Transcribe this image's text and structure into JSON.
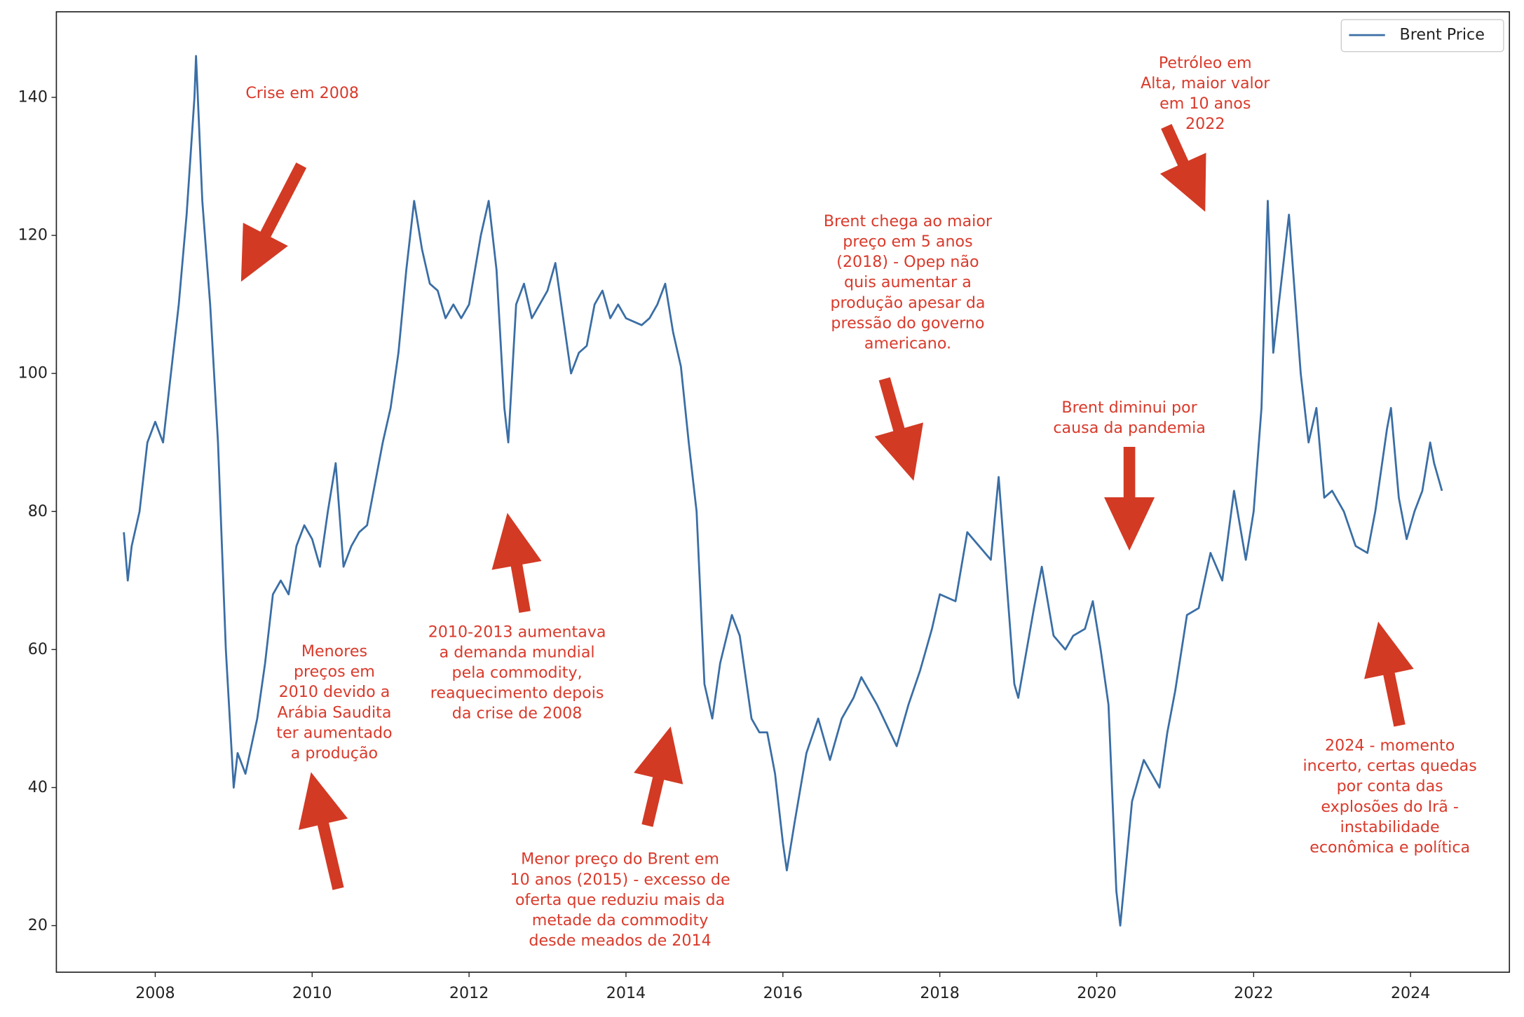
{
  "chart_data": {
    "type": "line",
    "x": [
      2007.6,
      2007.65,
      2007.7,
      2007.8,
      2007.9,
      2008.0,
      2008.1,
      2008.2,
      2008.3,
      2008.4,
      2008.5,
      2008.52,
      2008.6,
      2008.7,
      2008.8,
      2008.9,
      2009.0,
      2009.05,
      2009.15,
      2009.3,
      2009.4,
      2009.5,
      2009.6,
      2009.7,
      2009.8,
      2009.9,
      2010.0,
      2010.1,
      2010.2,
      2010.3,
      2010.4,
      2010.5,
      2010.6,
      2010.7,
      2010.8,
      2010.9,
      2011.0,
      2011.1,
      2011.2,
      2011.3,
      2011.4,
      2011.5,
      2011.6,
      2011.7,
      2011.8,
      2011.9,
      2012.0,
      2012.15,
      2012.25,
      2012.35,
      2012.45,
      2012.5,
      2012.6,
      2012.7,
      2012.8,
      2012.9,
      2013.0,
      2013.1,
      2013.2,
      2013.3,
      2013.4,
      2013.5,
      2013.6,
      2013.7,
      2013.8,
      2013.9,
      2014.0,
      2014.2,
      2014.3,
      2014.4,
      2014.5,
      2014.6,
      2014.7,
      2014.8,
      2014.9,
      2015.0,
      2015.1,
      2015.2,
      2015.35,
      2015.45,
      2015.6,
      2015.7,
      2015.8,
      2015.9,
      2016.0,
      2016.05,
      2016.15,
      2016.3,
      2016.45,
      2016.6,
      2016.75,
      2016.9,
      2017.0,
      2017.2,
      2017.45,
      2017.6,
      2017.75,
      2017.9,
      2018.0,
      2018.2,
      2018.35,
      2018.5,
      2018.65,
      2018.75,
      2018.85,
      2018.95,
      2019.0,
      2019.2,
      2019.3,
      2019.45,
      2019.6,
      2019.7,
      2019.85,
      2019.95,
      2020.05,
      2020.15,
      2020.25,
      2020.3,
      2020.45,
      2020.6,
      2020.8,
      2020.9,
      2021.0,
      2021.15,
      2021.3,
      2021.45,
      2021.6,
      2021.75,
      2021.9,
      2022.0,
      2022.1,
      2022.18,
      2022.25,
      2022.4,
      2022.45,
      2022.6,
      2022.7,
      2022.8,
      2022.9,
      2023.0,
      2023.15,
      2023.3,
      2023.45,
      2023.55,
      2023.7,
      2023.75,
      2023.85,
      2023.95,
      2024.05,
      2024.15,
      2024.25,
      2024.3,
      2024.4
    ],
    "series": [
      {
        "name": "Brent Price",
        "color": "#3a6ea5",
        "values": [
          77,
          70,
          75,
          80,
          90,
          93,
          90,
          100,
          110,
          123,
          140,
          146,
          125,
          110,
          90,
          60,
          40,
          45,
          42,
          50,
          58,
          68,
          70,
          68,
          75,
          78,
          76,
          72,
          80,
          87,
          72,
          75,
          77,
          78,
          84,
          90,
          95,
          103,
          115,
          125,
          118,
          113,
          112,
          108,
          110,
          108,
          110,
          120,
          125,
          115,
          95,
          90,
          110,
          113,
          108,
          110,
          112,
          116,
          108,
          100,
          103,
          104,
          110,
          112,
          108,
          110,
          108,
          107,
          108,
          110,
          113,
          106,
          101,
          90,
          80,
          55,
          50,
          58,
          65,
          62,
          50,
          48,
          48,
          42,
          32,
          28,
          35,
          45,
          50,
          44,
          50,
          53,
          56,
          52,
          46,
          52,
          57,
          63,
          68,
          67,
          77,
          75,
          73,
          85,
          70,
          55,
          53,
          66,
          72,
          62,
          60,
          62,
          63,
          67,
          60,
          52,
          25,
          20,
          38,
          44,
          40,
          48,
          54,
          65,
          66,
          74,
          70,
          83,
          73,
          80,
          95,
          125,
          103,
          118,
          123,
          100,
          90,
          95,
          82,
          83,
          80,
          75,
          74,
          80,
          92,
          95,
          82,
          76,
          80,
          83,
          90,
          87,
          83
        ]
      }
    ],
    "xlim": [
      2006.74,
      2025.26
    ],
    "ylim": [
      13.25,
      152.4
    ],
    "xticks": [
      2008,
      2010,
      2012,
      2014,
      2016,
      2018,
      2020,
      2022,
      2024
    ],
    "yticks": [
      20,
      40,
      60,
      80,
      100,
      120,
      140
    ],
    "legend": "upper right",
    "annotations": [
      {
        "lines": [
          "Crise em 2008"
        ]
      },
      {
        "lines": [
          "Petróleo em",
          "Alta, maior valor",
          "em 10 anos",
          "2022"
        ]
      },
      {
        "lines": [
          "Brent chega ao maior",
          "preço em 5 anos",
          "(2018) - Opep não",
          "quis aumentar a",
          "produção apesar da",
          "pressão do governo",
          "americano."
        ]
      },
      {
        "lines": [
          "Brent diminui por",
          "causa da pandemia"
        ]
      },
      {
        "lines": [
          "Menores",
          "preços em",
          "2010 devido a",
          "Arábia Saudita",
          "ter aumentado",
          "a produção"
        ]
      },
      {
        "lines": [
          "2010-2013 aumentava",
          "a demanda mundial",
          "pela commodity,",
          "reaquecimento depois",
          "da crise de 2008"
        ]
      },
      {
        "lines": [
          "Menor preço do Brent em",
          "10 anos (2015) - excesso de",
          "oferta que reduziu mais da",
          "metade da commodity",
          "desde meados de 2014"
        ]
      },
      {
        "lines": [
          "2024 - momento",
          "incerto, certas quedas",
          "por conta das",
          "explosões do Irã -",
          "instabilidade",
          "econômica e política"
        ]
      }
    ]
  }
}
